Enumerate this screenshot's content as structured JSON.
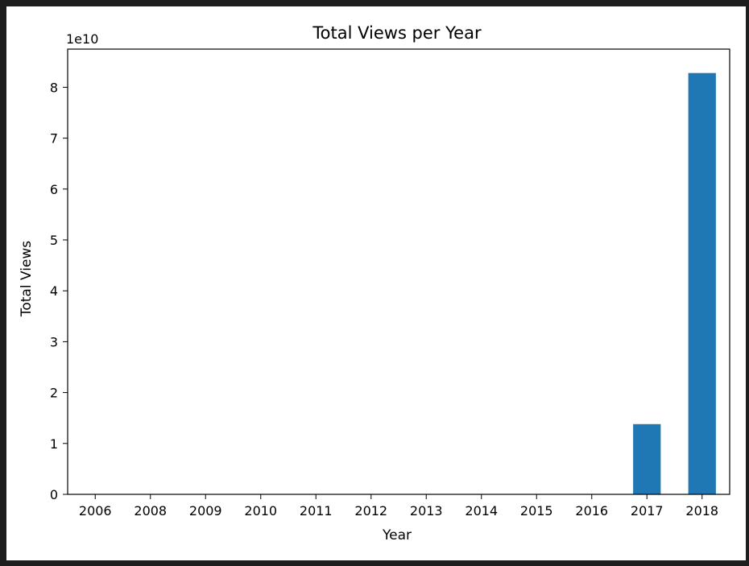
{
  "chart_data": {
    "type": "bar",
    "title": "Total Views per Year",
    "xlabel": "Year",
    "ylabel": "Total Views",
    "y_offset_label": "1e10",
    "categories": [
      "2006",
      "2008",
      "2009",
      "2010",
      "2011",
      "2012",
      "2013",
      "2014",
      "2015",
      "2016",
      "2017",
      "2018"
    ],
    "values": [
      5000,
      50000,
      100000,
      500000,
      1000000,
      2000000,
      5000000,
      10000000,
      20000000,
      50000000,
      13800000000,
      82800000000
    ],
    "ylim": [
      0,
      87500000000
    ],
    "yticks": [
      0,
      1,
      2,
      3,
      4,
      5,
      6,
      7,
      8
    ],
    "grid": false,
    "bar_color": "#1f77b4"
  }
}
